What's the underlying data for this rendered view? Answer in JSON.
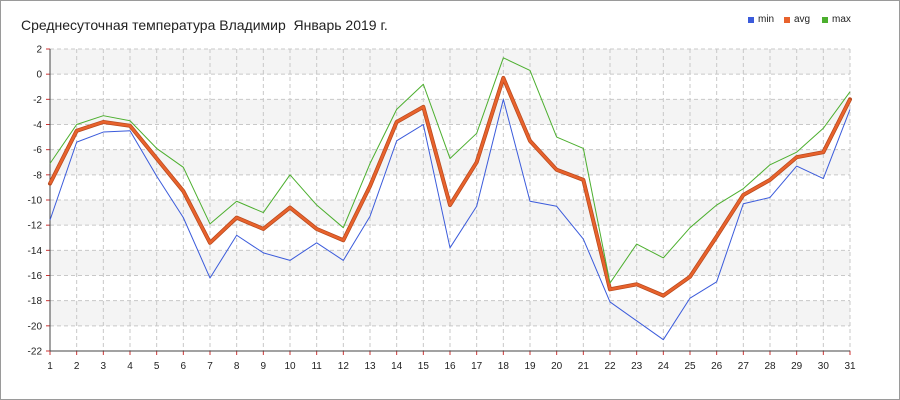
{
  "chart_data": {
    "type": "line",
    "title": "Среднесуточная температура Владимир  Январь 2019 г.",
    "xlabel": "",
    "ylabel": "",
    "x": [
      1,
      2,
      3,
      4,
      5,
      6,
      7,
      8,
      9,
      10,
      11,
      12,
      13,
      14,
      15,
      16,
      17,
      18,
      19,
      20,
      21,
      22,
      23,
      24,
      25,
      26,
      27,
      28,
      29,
      30,
      31
    ],
    "x_ticks": [
      "1",
      "2",
      "3",
      "4",
      "5",
      "6",
      "7",
      "8",
      "9",
      "10",
      "11",
      "12",
      "13",
      "14",
      "15",
      "16",
      "17",
      "18",
      "19",
      "20",
      "21",
      "22",
      "23",
      "24",
      "25",
      "26",
      "27",
      "28",
      "29",
      "30",
      "31"
    ],
    "xlim": [
      1,
      31
    ],
    "ylim": [
      -22,
      2
    ],
    "y_ticks": [
      2,
      0,
      -2,
      -4,
      -6,
      -8,
      -10,
      -12,
      -14,
      -16,
      -18,
      -20,
      -22
    ],
    "grid": true,
    "legend_position": "top-right",
    "series": [
      {
        "name": "min",
        "color": "#3b5bdb",
        "values": [
          -11.6,
          -5.4,
          -4.6,
          -4.5,
          -8.1,
          -11.4,
          -16.2,
          -12.8,
          -14.2,
          -14.8,
          -13.4,
          -14.8,
          -11.3,
          -5.3,
          -4.0,
          -13.8,
          -10.5,
          -2.0,
          -10.1,
          -10.5,
          -13.1,
          -18.1,
          -19.6,
          -21.1,
          -17.8,
          -16.5,
          -10.3,
          -9.8,
          -7.3,
          -8.3,
          -2.8
        ]
      },
      {
        "name": "avg",
        "color": "#e8622c",
        "values": [
          -8.7,
          -4.5,
          -3.8,
          -4.1,
          -6.7,
          -9.3,
          -13.4,
          -11.4,
          -12.3,
          -10.6,
          -12.3,
          -13.2,
          -8.9,
          -3.8,
          -2.6,
          -10.4,
          -7.0,
          -0.3,
          -5.3,
          -7.6,
          -8.4,
          -17.1,
          -16.7,
          -17.6,
          -16.1,
          -12.9,
          -9.6,
          -8.4,
          -6.6,
          -6.2,
          -2.0
        ]
      },
      {
        "name": "max",
        "color": "#4caf2e",
        "values": [
          -7.1,
          -4.0,
          -3.3,
          -3.7,
          -5.9,
          -7.4,
          -11.9,
          -10.1,
          -11.0,
          -8.0,
          -10.4,
          -12.2,
          -7.1,
          -2.8,
          -0.8,
          -6.7,
          -4.7,
          1.3,
          0.3,
          -5.0,
          -5.9,
          -16.6,
          -13.5,
          -14.6,
          -12.2,
          -10.4,
          -9.1,
          -7.2,
          -6.2,
          -4.3,
          -1.4
        ]
      }
    ]
  }
}
